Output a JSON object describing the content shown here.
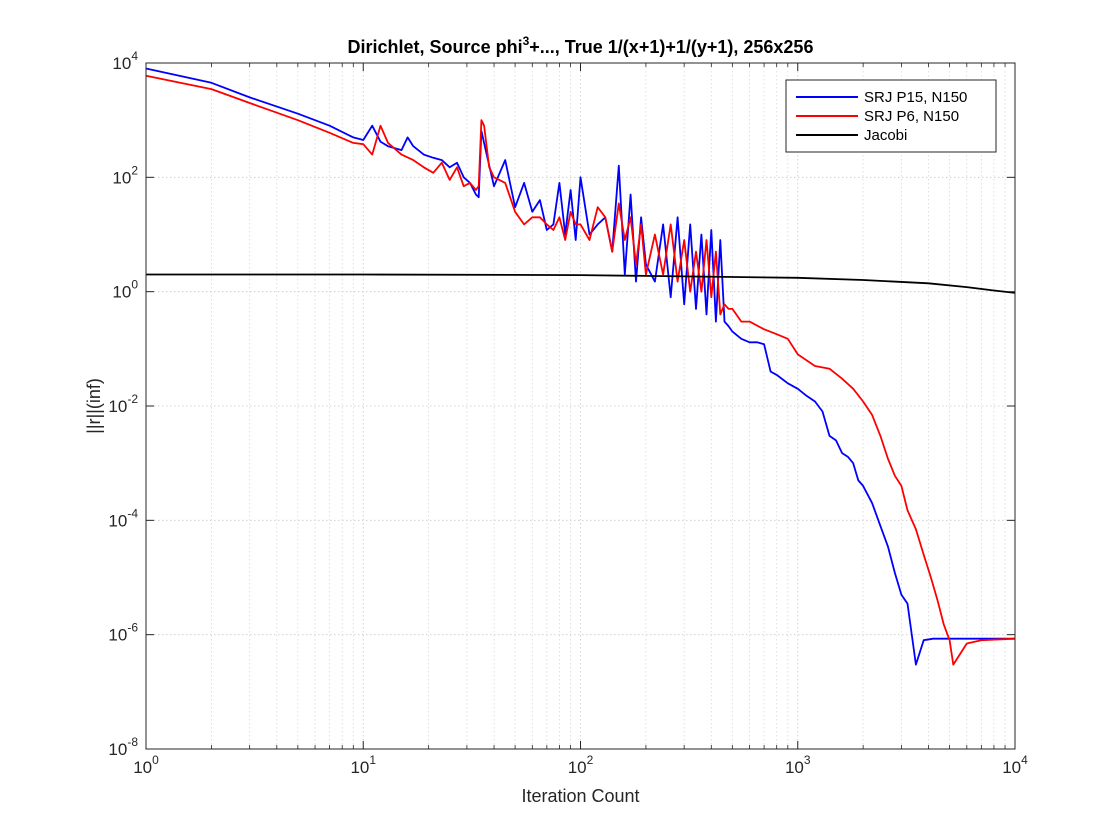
{
  "chart_data": {
    "type": "line",
    "title": {
      "prefix": "Dirichlet, Source phi",
      "superscript": "3",
      "suffix": "+..., True 1/(x+1)+1/(y+1), 256x256"
    },
    "xlabel": "Iteration Count",
    "ylabel": "||r||(inf)",
    "x_scale": "log",
    "y_scale": "log",
    "xlim": [
      1,
      10000
    ],
    "ylim": [
      1e-08,
      10000
    ],
    "grid": true,
    "minor_grid_x": true,
    "legend_position": "top-right",
    "x_ticks": [
      {
        "value": 1,
        "base": "10",
        "exp": "0"
      },
      {
        "value": 10,
        "base": "10",
        "exp": "1"
      },
      {
        "value": 100,
        "base": "10",
        "exp": "2"
      },
      {
        "value": 1000,
        "base": "10",
        "exp": "3"
      },
      {
        "value": 10000,
        "base": "10",
        "exp": "4"
      }
    ],
    "y_ticks": [
      {
        "value": 1e-08,
        "base": "10",
        "exp": "-8"
      },
      {
        "value": 1e-06,
        "base": "10",
        "exp": "-6"
      },
      {
        "value": 0.0001,
        "base": "10",
        "exp": "-4"
      },
      {
        "value": 0.01,
        "base": "10",
        "exp": "-2"
      },
      {
        "value": 1,
        "base": "10",
        "exp": "0"
      },
      {
        "value": 100,
        "base": "10",
        "exp": "2"
      },
      {
        "value": 10000,
        "base": "10",
        "exp": "4"
      }
    ],
    "series": [
      {
        "name": "SRJ P15, N150",
        "color": "#0000ff",
        "x": [
          1,
          2,
          3,
          5,
          7,
          9,
          10,
          11,
          12,
          13,
          15,
          16,
          17,
          19,
          21,
          23,
          25,
          27,
          29,
          31,
          33,
          34,
          35,
          37,
          40,
          45,
          50,
          55,
          60,
          65,
          70,
          75,
          80,
          85,
          90,
          95,
          100,
          110,
          120,
          130,
          140,
          150,
          160,
          170,
          180,
          190,
          200,
          220,
          240,
          260,
          280,
          300,
          320,
          340,
          360,
          380,
          400,
          420,
          440,
          460,
          480,
          500,
          550,
          600,
          650,
          700,
          750,
          800,
          900,
          1000,
          1100,
          1200,
          1300,
          1400,
          1500,
          1600,
          1700,
          1800,
          1900,
          2000,
          2200,
          2400,
          2600,
          2800,
          3000,
          3200,
          3500,
          3800,
          4200,
          5000,
          7000,
          10000
        ],
        "y": [
          8000,
          4500,
          2500,
          1300,
          800,
          500,
          450,
          800,
          420,
          350,
          300,
          500,
          350,
          250,
          220,
          200,
          150,
          180,
          100,
          80,
          50,
          45,
          650,
          250,
          70,
          200,
          30,
          80,
          25,
          40,
          12,
          15,
          80,
          10,
          60,
          8,
          100,
          10,
          15,
          20,
          5,
          160,
          2,
          50,
          1.5,
          20,
          3,
          1.5,
          15,
          0.8,
          20,
          0.6,
          15,
          0.5,
          10,
          0.4,
          12,
          0.3,
          8,
          0.3,
          0.25,
          0.2,
          0.15,
          0.13,
          0.13,
          0.12,
          0.04,
          0.035,
          0.025,
          0.02,
          0.015,
          0.012,
          0.008,
          0.003,
          0.0025,
          0.0015,
          0.0013,
          0.001,
          0.0005,
          0.0004,
          0.0002,
          8e-05,
          3.5e-05,
          1.2e-05,
          5e-06,
          3.5e-06,
          3e-07,
          8e-07,
          8.5e-07,
          8.5e-07,
          8.5e-07,
          8.5e-07
        ]
      },
      {
        "name": "SRJ P6, N150",
        "color": "#ff0000",
        "x": [
          1,
          2,
          3,
          5,
          7,
          9,
          10,
          11,
          12,
          13,
          15,
          17,
          19,
          21,
          23,
          25,
          27,
          29,
          31,
          33,
          34,
          35,
          36,
          38,
          40,
          45,
          50,
          55,
          60,
          65,
          70,
          75,
          80,
          85,
          90,
          95,
          100,
          110,
          120,
          130,
          140,
          150,
          160,
          170,
          180,
          190,
          200,
          220,
          240,
          260,
          280,
          300,
          320,
          340,
          360,
          380,
          400,
          420,
          440,
          460,
          480,
          500,
          550,
          600,
          700,
          800,
          900,
          1000,
          1200,
          1400,
          1600,
          1800,
          2000,
          2200,
          2400,
          2600,
          2800,
          3000,
          3200,
          3500,
          3800,
          4100,
          4400,
          4700,
          5000,
          5200,
          6000,
          7000,
          10000
        ],
        "y": [
          6000,
          3500,
          2000,
          1000,
          600,
          400,
          380,
          250,
          800,
          400,
          250,
          200,
          150,
          120,
          180,
          90,
          150,
          70,
          80,
          60,
          70,
          1000,
          800,
          150,
          100,
          80,
          25,
          15,
          20,
          20,
          15,
          12,
          20,
          8,
          25,
          15,
          15,
          8,
          30,
          20,
          5,
          35,
          8,
          20,
          3,
          15,
          2,
          10,
          2,
          15,
          1.5,
          8,
          1,
          5,
          1,
          8,
          0.8,
          5,
          0.4,
          0.6,
          0.5,
          0.5,
          0.3,
          0.3,
          0.22,
          0.18,
          0.15,
          0.08,
          0.05,
          0.045,
          0.03,
          0.02,
          0.012,
          0.007,
          0.003,
          0.0012,
          0.0006,
          0.0004,
          0.00015,
          7e-05,
          2.5e-05,
          1e-05,
          4e-06,
          1.5e-06,
          8e-07,
          3e-07,
          7e-07,
          8e-07,
          8.5e-07
        ]
      },
      {
        "name": "Jacobi",
        "color": "#000000",
        "x": [
          1,
          10,
          100,
          1000,
          2000,
          4000,
          6000,
          8000,
          10000
        ],
        "y": [
          2.0,
          2.0,
          1.95,
          1.75,
          1.6,
          1.4,
          1.2,
          1.05,
          0.95
        ]
      }
    ]
  }
}
